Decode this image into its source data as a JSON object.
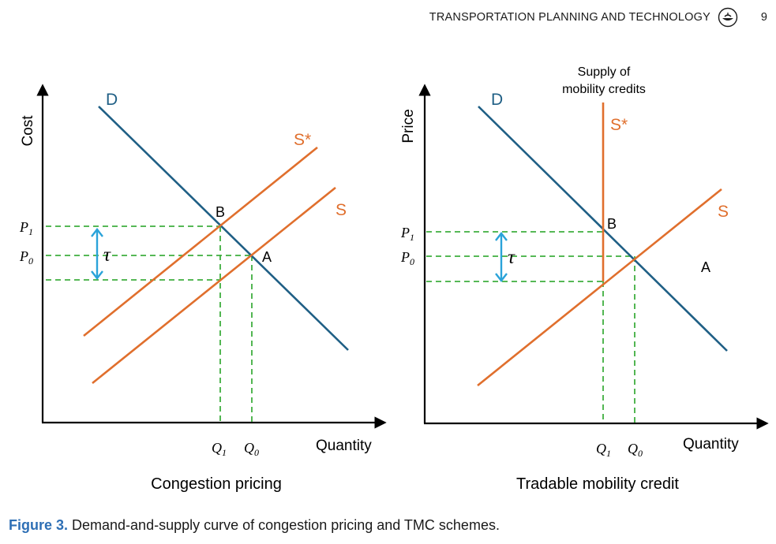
{
  "header": {
    "journal": "TRANSPORTATION PLANNING AND TECHNOLOGY",
    "page_number": "9",
    "logo_icon": "journal-logo-icon"
  },
  "colors": {
    "demand": "#1f5f85",
    "supply": "#e06f2d",
    "guides": "#3fae3f",
    "tax_arrow": "#2aa3d9",
    "caption_label": "#2e6fb5"
  },
  "left_panel": {
    "y_label": "Cost",
    "x_label": "Quantity",
    "demand_label": "D",
    "supply_label": "S",
    "shifted_supply_label": "S*",
    "point_b": "B",
    "point_a": "A",
    "p1": "P",
    "p1_sub": "1",
    "p0": "P",
    "p0_sub": "0",
    "q1": "Q",
    "q1_sub": "1",
    "q0": "Q",
    "q0_sub": "0",
    "tax_symbol": "τ",
    "title": "Congestion pricing"
  },
  "right_panel": {
    "y_label": "Price",
    "x_label": "Quantity",
    "demand_label": "D",
    "supply_label": "S",
    "credit_supply_label": "S*",
    "credit_title_line1": "Supply of",
    "credit_title_line2": "mobility credits",
    "point_b": "B",
    "point_a": "A",
    "p1": "P",
    "p1_sub": "1",
    "p0": "P",
    "p0_sub": "0",
    "q1": "Q",
    "q1_sub": "1",
    "q0": "Q",
    "q0_sub": "0",
    "tax_symbol": "τ",
    "title": "Tradable mobility credit"
  },
  "caption": {
    "label": "Figure 3.",
    "text": " Demand-and-supply curve of congestion pricing and TMC schemes."
  }
}
